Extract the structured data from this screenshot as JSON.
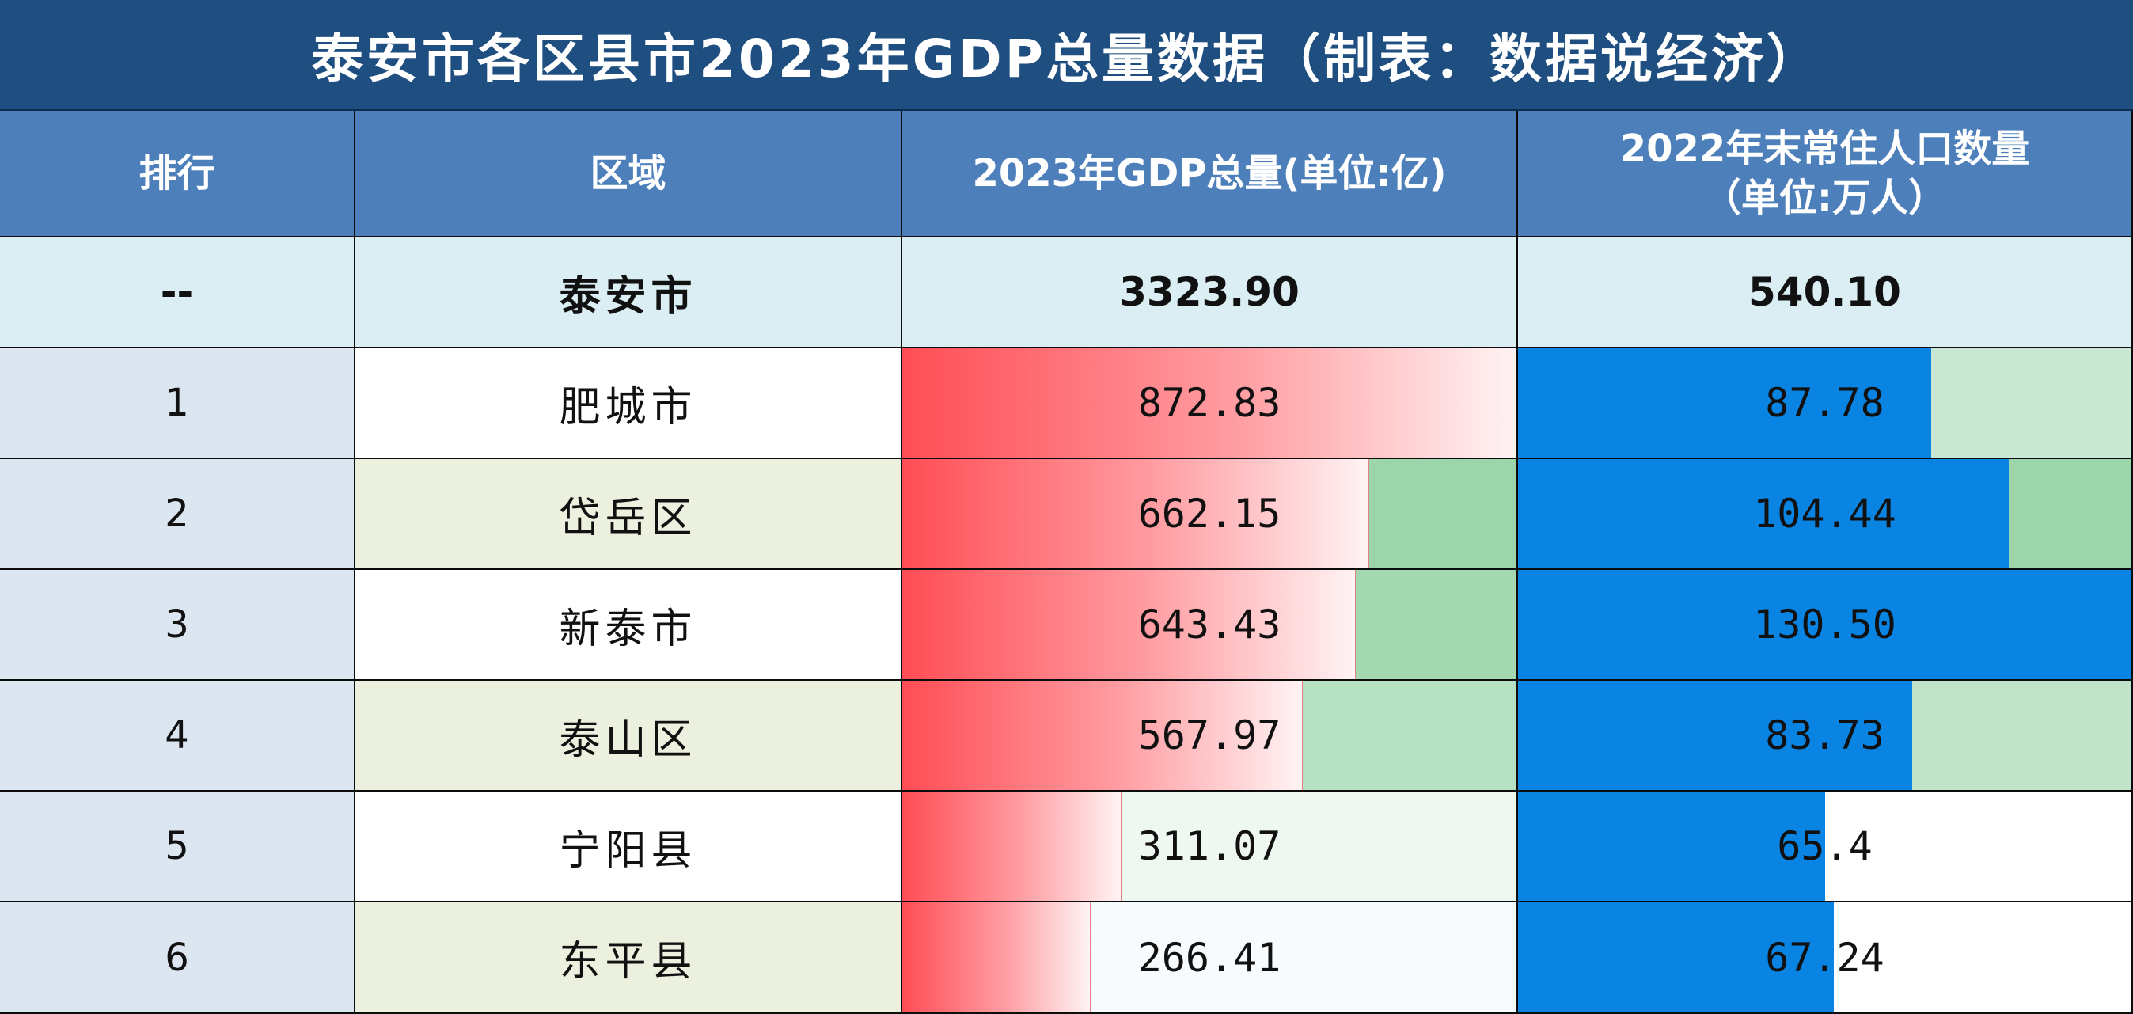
{
  "title": "泰安市各区县市2023年GDP总量数据（制表：数据说经济）",
  "headers": {
    "rank": "排行",
    "region": "区域",
    "gdp": "2023年GDP总量(单位:亿)",
    "pop_line1": "2022年末常住人口数量",
    "pop_line2": "（单位:万人）"
  },
  "total": {
    "rank": "--",
    "region": "泰安市",
    "gdp": "3323.90",
    "pop": "540.10"
  },
  "rows": [
    {
      "rank": "1",
      "region": "肥城市",
      "gdp": "872.83",
      "pop": "87.78",
      "gdp_fill": 1.0,
      "pop_fill": 0.673,
      "gdp_rest_color": "#d8eedf",
      "pop_rest_color": "#c9e8d4"
    },
    {
      "rank": "2",
      "region": "岱岳区",
      "gdp": "662.15",
      "pop": "104.44",
      "gdp_fill": 0.759,
      "pop_fill": 0.8,
      "gdp_rest_color": "#9dd5ab",
      "pop_rest_color": "#9dd5ab"
    },
    {
      "rank": "3",
      "region": "新泰市",
      "gdp": "643.43",
      "pop": "130.50",
      "gdp_fill": 0.737,
      "pop_fill": 1.0,
      "gdp_rest_color": "#a4d8b1",
      "pop_rest_color": "#a4d8b1"
    },
    {
      "rank": "4",
      "region": "泰山区",
      "gdp": "567.97",
      "pop": "83.73",
      "gdp_fill": 0.651,
      "pop_fill": 0.642,
      "gdp_rest_color": "#b5e0c1",
      "pop_rest_color": "#bfe4ca"
    },
    {
      "rank": "5",
      "region": "宁阳县",
      "gdp": "311.07",
      "pop": "65.4",
      "gdp_fill": 0.356,
      "pop_fill": 0.501,
      "gdp_rest_color": "#eff7f1",
      "pop_rest_color": "#ffffff"
    },
    {
      "rank": "6",
      "region": "东平县",
      "gdp": "266.41",
      "pop": "67.24",
      "gdp_fill": 0.305,
      "pop_fill": 0.515,
      "gdp_rest_color": "#f8fbfd",
      "pop_rest_color": "#ffffff"
    }
  ]
}
